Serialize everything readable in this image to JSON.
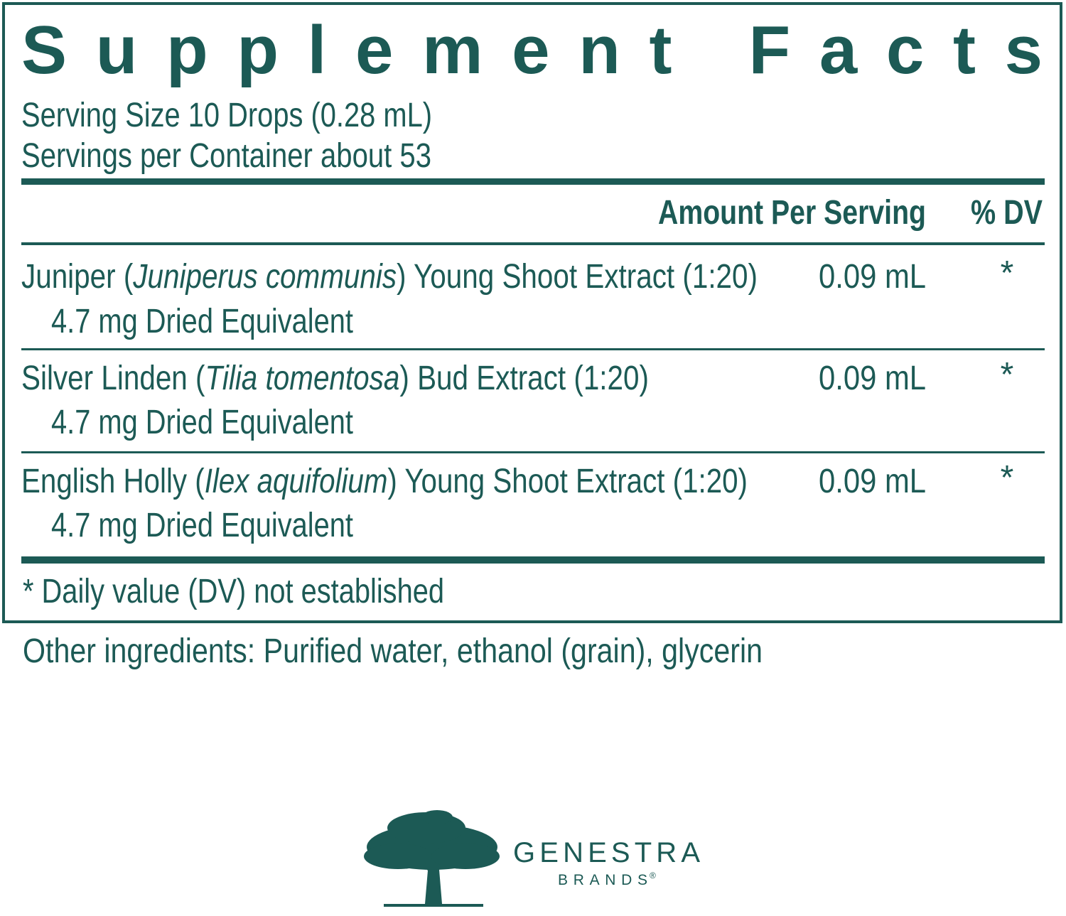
{
  "title": "Supplement Facts",
  "serving_size": "Serving Size 10 Drops (0.28 mL)",
  "servings_per_container": "Servings per Container about 53",
  "header": {
    "amount": "Amount Per Serving",
    "dv": "% DV"
  },
  "rows": [
    {
      "name": [
        "Juniper (",
        "Juniperus communis",
        ") Young Shoot Extract (1:20)"
      ],
      "sub": "4.7 mg Dried Equivalent",
      "amount": "0.09 mL",
      "dv": "*"
    },
    {
      "name": [
        "Silver Linden (",
        "Tilia tomentosa",
        ") Bud Extract (1:20)"
      ],
      "sub": "4.7 mg Dried Equivalent",
      "amount": "0.09 mL",
      "dv": "*"
    },
    {
      "name": [
        "English Holly (",
        "Ilex aquifolium",
        ") Young Shoot Extract (1:20)"
      ],
      "sub": "4.7 mg Dried Equivalent",
      "amount": "0.09 mL",
      "dv": "*"
    }
  ],
  "footnote": "* Daily value (DV) not established",
  "other_ingredients": "Other ingredients: Purified water, ethanol (grain), glycerin",
  "brand": {
    "name": "GENESTRA",
    "sub": "BRANDS",
    "mark": "®"
  }
}
